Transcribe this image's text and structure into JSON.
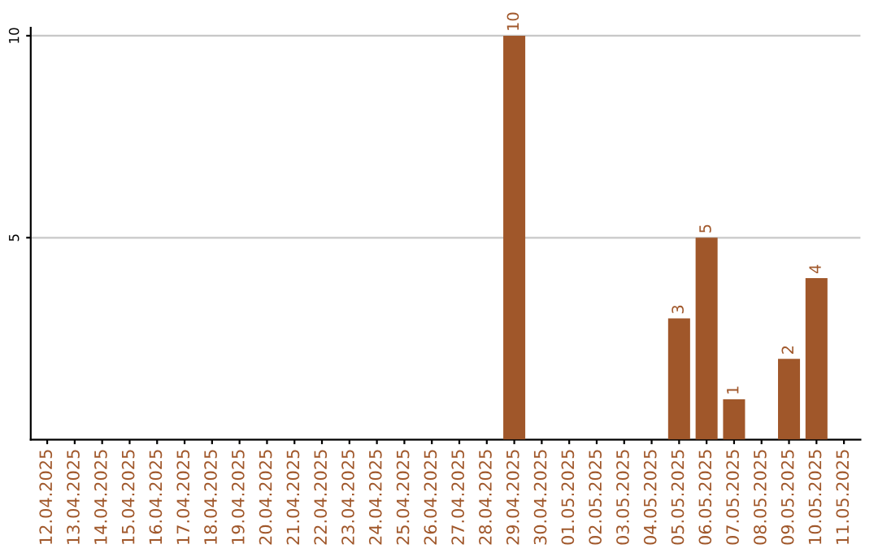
{
  "chart_data": {
    "type": "bar",
    "categories": [
      "12.04.2025",
      "13.04.2025",
      "14.04.2025",
      "15.04.2025",
      "16.04.2025",
      "17.04.2025",
      "18.04.2025",
      "19.04.2025",
      "20.04.2025",
      "21.04.2025",
      "22.04.2025",
      "23.04.2025",
      "24.04.2025",
      "25.04.2025",
      "26.04.2025",
      "27.04.2025",
      "28.04.2025",
      "29.04.2025",
      "30.04.2025",
      "01.05.2025",
      "02.05.2025",
      "03.05.2025",
      "04.05.2025",
      "05.05.2025",
      "06.05.2025",
      "07.05.2025",
      "08.05.2025",
      "09.05.2025",
      "10.05.2025",
      "11.05.2025"
    ],
    "values": [
      0,
      0,
      0,
      0,
      0,
      0,
      0,
      0,
      0,
      0,
      0,
      0,
      0,
      0,
      0,
      0,
      0,
      10,
      0,
      0,
      0,
      0,
      0,
      3,
      5,
      1,
      0,
      2,
      4,
      0
    ],
    "value_labels": [
      null,
      null,
      null,
      null,
      null,
      null,
      null,
      null,
      null,
      null,
      null,
      null,
      null,
      null,
      null,
      null,
      null,
      "10",
      null,
      null,
      null,
      null,
      null,
      "3",
      "5",
      "1",
      null,
      "2",
      "4",
      null
    ],
    "color": "#a0572a",
    "ylim": [
      0,
      10.2
    ],
    "yticks": [
      5,
      10
    ],
    "grid": "y"
  }
}
